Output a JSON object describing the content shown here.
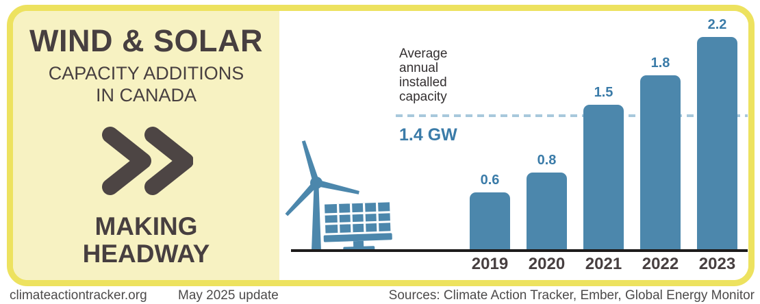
{
  "left_panel": {
    "title": "WIND & SOLAR",
    "subtitle_line1": "CAPACITY ADDITIONS",
    "subtitle_line2": "IN CANADA",
    "tagline_line1": "MAKING",
    "tagline_line2": "HEADWAY",
    "chevrons_icon": "double-chevron-right"
  },
  "chart_data": {
    "type": "bar",
    "categories": [
      "2019",
      "2020",
      "2021",
      "2022",
      "2023"
    ],
    "values": [
      0.6,
      0.8,
      1.5,
      1.8,
      2.2
    ],
    "unit": "GW",
    "title": "",
    "xlabel": "",
    "ylabel": "",
    "ylim": [
      0,
      2.4
    ],
    "grid": false,
    "value_labels_shown": true,
    "reference_line": {
      "label": "Average annual installed capacity",
      "value": 1.4,
      "value_label": "1.4 GW",
      "style": "dashed"
    },
    "bar_color": "#4c87ac",
    "value_label_color": "#3a7ba8",
    "reference_line_color": "#a8c8dc"
  },
  "illustration": {
    "icons": [
      "wind-turbine-icon",
      "solar-panel-icon"
    ],
    "color": "#4c87ac"
  },
  "colors": {
    "border_yellow": "#ede25f",
    "panel_yellow": "#f7f2c2",
    "dark_text": "#473f40",
    "axis_black": "#1d1b1b",
    "footer_text": "#4c4a4a"
  },
  "footer": {
    "site": "climateactiontracker.org",
    "update": "May 2025 update",
    "sources": "Sources: Climate Action Tracker, Ember, Global Energy Monitor"
  }
}
